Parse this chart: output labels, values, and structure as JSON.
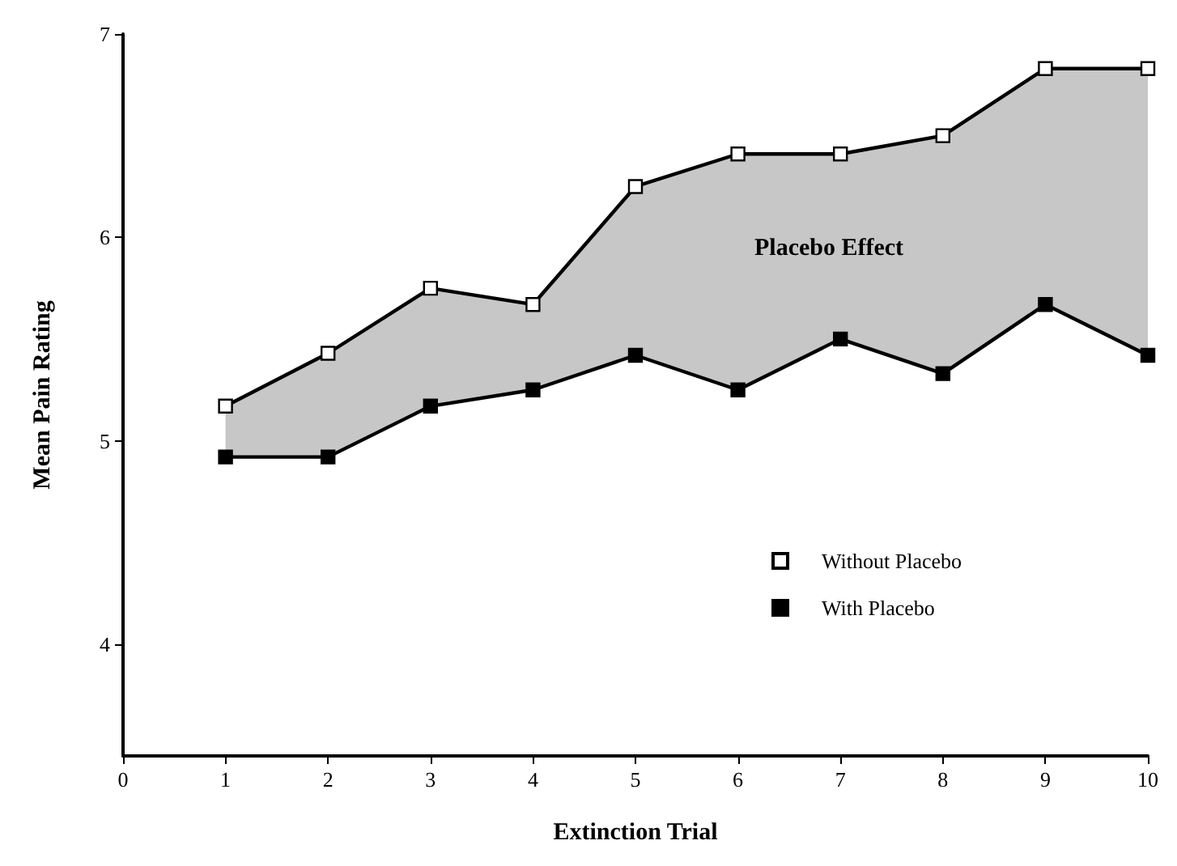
{
  "chart_data": {
    "type": "line",
    "xlabel": "Extinction Trial",
    "ylabel": "Mean Pain Rating",
    "x": [
      1,
      2,
      3,
      4,
      5,
      6,
      7,
      8,
      9,
      10
    ],
    "series": [
      {
        "name": "Without Placebo",
        "color": "#000000",
        "values": [
          5.17,
          5.43,
          5.75,
          5.67,
          6.25,
          6.41,
          6.41,
          6.5,
          6.83,
          6.83
        ],
        "lower": [
          4.92,
          4.92,
          5.17,
          5.25,
          5.42,
          5.25,
          5.5,
          5.33,
          5.67,
          5.42
        ],
        "upper": [
          5.17,
          5.43,
          5.75,
          5.67,
          6.25,
          6.41,
          6.41,
          6.5,
          6.83,
          6.83
        ]
      },
      {
        "name": "With Placebo",
        "color": "#000000",
        "values": [
          4.92,
          4.92,
          5.17,
          5.25,
          5.42,
          5.25,
          5.5,
          5.33,
          5.67,
          5.42
        ]
      }
    ],
    "annotations": [
      "Placebo Effect"
    ],
    "xlim": [
      0,
      10
    ],
    "xticks": [
      0,
      1,
      2,
      3,
      4,
      5,
      6,
      7,
      8,
      9,
      10
    ],
    "ylim": [
      3.45,
      7
    ],
    "yticks": [
      4,
      5,
      6,
      7
    ],
    "marker": "square",
    "line_style": "solid",
    "grid": false,
    "legend": "bottom right"
  }
}
